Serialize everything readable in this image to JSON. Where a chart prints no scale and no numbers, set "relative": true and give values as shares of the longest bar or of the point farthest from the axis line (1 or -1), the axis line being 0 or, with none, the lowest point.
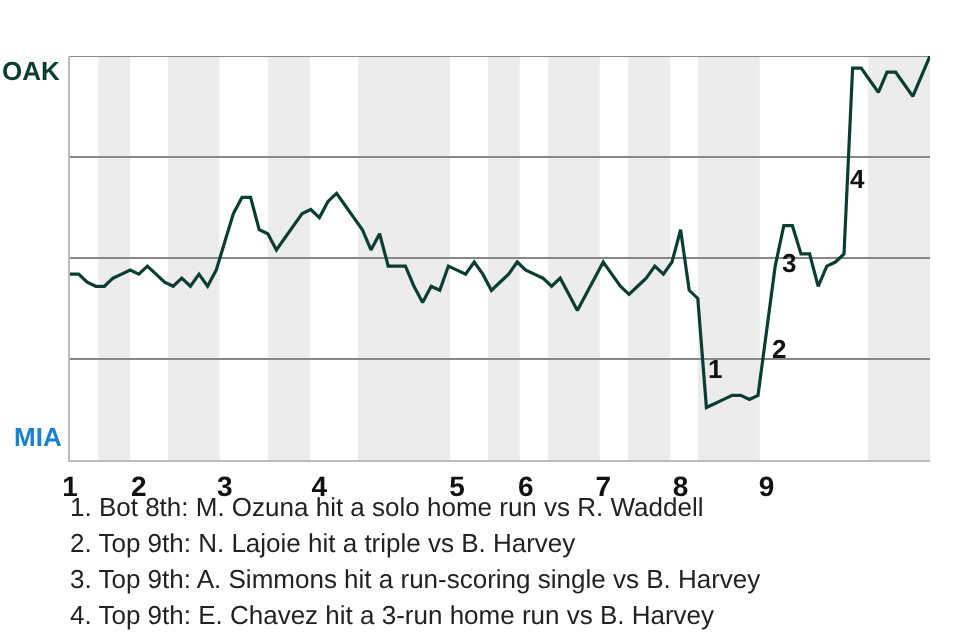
{
  "chart_data": {
    "type": "line",
    "relative": true,
    "categories": [
      "1",
      null,
      null,
      null,
      null,
      null,
      null,
      null,
      "2",
      null,
      null,
      null,
      null,
      null,
      null,
      null,
      null,
      null,
      "3",
      null,
      null,
      null,
      null,
      null,
      null,
      null,
      null,
      null,
      null,
      "4",
      null,
      null,
      null,
      null,
      null,
      null,
      null,
      null,
      null,
      null,
      null,
      null,
      null,
      null,
      null,
      "5",
      null,
      null,
      null,
      null,
      null,
      null,
      null,
      "6",
      null,
      null,
      null,
      null,
      null,
      null,
      null,
      null,
      "7",
      null,
      null,
      null,
      null,
      null,
      null,
      null,
      null,
      "8",
      null,
      null,
      null,
      null,
      null,
      null,
      null,
      null,
      null,
      "9",
      null,
      null,
      null,
      null,
      null,
      null,
      null,
      null,
      null,
      null,
      null,
      null,
      null,
      null,
      null,
      null,
      null,
      null,
      null
    ],
    "series": [
      {
        "color": "#0b3d33",
        "values": [
          0.46,
          0.46,
          0.44,
          0.43,
          0.43,
          0.45,
          0.46,
          0.47,
          0.46,
          0.48,
          0.46,
          0.44,
          0.43,
          0.45,
          0.43,
          0.46,
          0.43,
          0.47,
          0.54,
          0.61,
          0.65,
          0.65,
          0.57,
          0.56,
          0.52,
          0.55,
          0.58,
          0.61,
          0.62,
          0.6,
          0.64,
          0.66,
          0.63,
          0.6,
          0.57,
          0.52,
          0.56,
          0.48,
          0.48,
          0.48,
          0.43,
          0.39,
          0.43,
          0.42,
          0.48,
          0.47,
          0.46,
          0.49,
          0.46,
          0.42,
          0.44,
          0.46,
          0.49,
          0.47,
          0.46,
          0.45,
          0.43,
          0.45,
          0.41,
          0.37,
          0.41,
          0.45,
          0.49,
          0.46,
          0.43,
          0.41,
          0.43,
          0.45,
          0.48,
          0.46,
          0.49,
          0.57,
          0.42,
          0.4,
          0.13,
          0.14,
          0.15,
          0.16,
          0.16,
          0.15,
          0.16,
          0.32,
          0.48,
          0.58,
          0.58,
          0.51,
          0.51,
          0.43,
          0.48,
          0.49,
          0.51,
          0.97,
          0.97,
          0.94,
          0.91,
          0.96,
          0.96,
          0.93,
          0.9,
          0.95,
          1
        ]
      }
    ],
    "ref_lines": [
      {
        "axis": "y",
        "value": 0.25,
        "color": "#888888"
      },
      {
        "axis": "y",
        "value": 0.5,
        "color": "#888888"
      },
      {
        "axis": "y",
        "value": 0.75,
        "color": "#888888"
      },
      {
        "axis": "y",
        "value": 1,
        "color": "#888888"
      }
    ],
    "annotations": [
      "OAK",
      "MIA",
      "1",
      "2",
      "3",
      "4",
      "1. Bot 8th: M. Ozuna hit a solo home run vs R. Waddell",
      "2. Top 9th: N. Lajoie hit a triple vs B. Harvey",
      "3. Top 9th: A. Simmons hit a run-scoring single vs B. Harvey",
      "4. Top 9th: E. Chavez hit a 3-run home run vs B. Harvey"
    ]
  }
}
